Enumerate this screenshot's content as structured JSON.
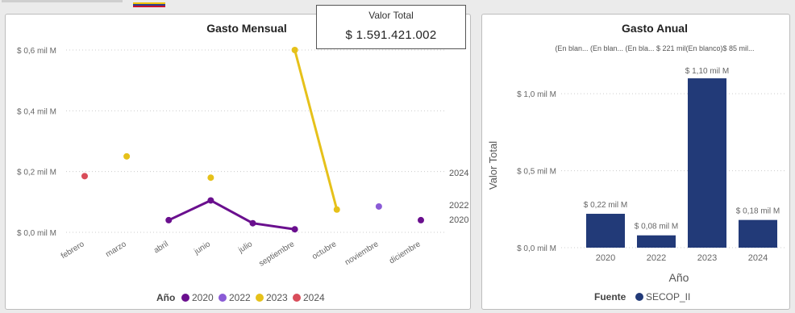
{
  "colors": {
    "y2020": "#6a0f8e",
    "y2022": "#8a5bd6",
    "y2023": "#e6c11a",
    "y2024": "#d94d5a",
    "bar": "#223a78",
    "grid": "#cccccc"
  },
  "card": {
    "label": "Valor Total",
    "value": "$ 1.591.421.002"
  },
  "chart_data": [
    {
      "type": "line",
      "title": "Gasto Mensual",
      "categories": [
        "febrero",
        "marzo",
        "abril",
        "junio",
        "julio",
        "septiembre",
        "octubre",
        "noviembre",
        "diciembre"
      ],
      "y_ticks": [
        "$ 0,0 mil M",
        "$ 0,2 mil M",
        "$ 0,4 mil M",
        "$ 0,6 mil M"
      ],
      "y_tick_values": [
        0,
        0.2,
        0.4,
        0.6
      ],
      "ylim": [
        0,
        0.6
      ],
      "series": [
        {
          "name": "2020",
          "color_key": "y2020",
          "points": [
            {
              "x": "abril",
              "y": 0.04
            },
            {
              "x": "junio",
              "y": 0.105
            },
            {
              "x": "julio",
              "y": 0.03
            },
            {
              "x": "septiembre",
              "y": 0.01
            },
            {
              "x": "diciembre",
              "y": 0.04
            }
          ]
        },
        {
          "name": "2022",
          "color_key": "y2022",
          "points": [
            {
              "x": "noviembre",
              "y": 0.085
            }
          ]
        },
        {
          "name": "2023",
          "color_key": "y2023",
          "points": [
            {
              "x": "marzo",
              "y": 0.25
            },
            {
              "x": "junio",
              "y": 0.18
            },
            {
              "x": "septiembre",
              "y": 0.6
            },
            {
              "x": "octubre",
              "y": 0.075
            }
          ]
        },
        {
          "name": "2024",
          "color_key": "y2024",
          "points": [
            {
              "x": "febrero",
              "y": 0.185
            }
          ]
        }
      ],
      "right_labels": [
        {
          "text": "2024",
          "y": 0.185
        },
        {
          "text": "2022",
          "y": 0.085
        },
        {
          "text": "2020",
          "y": 0.04
        }
      ],
      "legend": {
        "title": "Año",
        "items": [
          "2020",
          "2022",
          "2023",
          "2024"
        ]
      },
      "grid": true
    },
    {
      "type": "bar",
      "title": "Gasto Anual",
      "categories": [
        "2020",
        "2022",
        "2023",
        "2024"
      ],
      "values": [
        0.22,
        0.08,
        1.1,
        0.18
      ],
      "data_labels": [
        "$ 0,22 mil M",
        "$ 0,08 mil M",
        "$ 1,10 mil M",
        "$ 0,18 mil M"
      ],
      "y_ticks": [
        "$ 0,0 mil M",
        "$ 0,5 mil M",
        "$ 1,0 mil M"
      ],
      "y_tick_values": [
        0,
        0.5,
        1.0
      ],
      "ylim": [
        0,
        1.2
      ],
      "ylabel": "Valor Total",
      "xlabel": "Año",
      "top_overflow_labels": "(En blan... (En blan... (En bla... $ 221 mil(En blanco)$ 85 mil...",
      "legend": {
        "title": "Fuente",
        "items": [
          "SECOP_II"
        ]
      },
      "grid": true
    }
  ]
}
